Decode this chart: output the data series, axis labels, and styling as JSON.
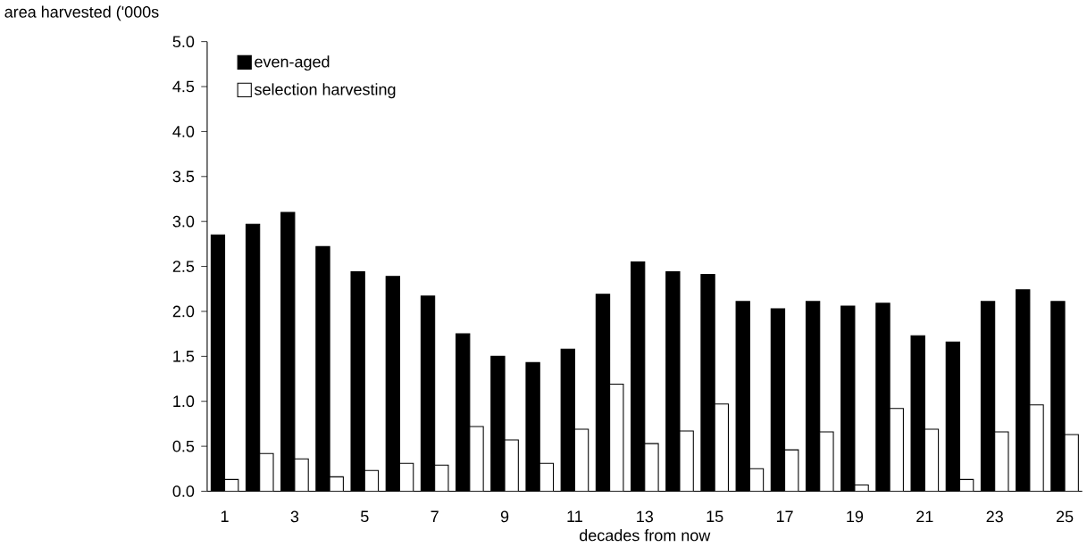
{
  "chart_data": {
    "type": "bar",
    "ylabel": "area harvested ('000s",
    "xlabel": "decades from now",
    "categories": [
      "1",
      null,
      "3",
      null,
      "5",
      null,
      "7",
      null,
      "9",
      null,
      "11",
      null,
      "13",
      null,
      "15",
      null,
      "17",
      null,
      "19",
      null,
      "21",
      null,
      "23",
      null,
      "25"
    ],
    "series": [
      {
        "name": "even-aged",
        "color": "#000000",
        "values": [
          2.85,
          2.97,
          3.1,
          2.72,
          2.44,
          2.39,
          2.17,
          1.75,
          1.5,
          1.43,
          1.58,
          2.19,
          2.55,
          2.44,
          2.41,
          2.11,
          2.03,
          2.11,
          2.06,
          2.09,
          1.73,
          1.66,
          2.11,
          2.24,
          2.11
        ]
      },
      {
        "name": "selection harvesting",
        "color": "#ffffff",
        "values": [
          0.13,
          0.42,
          0.36,
          0.16,
          0.23,
          0.31,
          0.29,
          0.72,
          0.57,
          0.31,
          0.69,
          1.19,
          0.53,
          0.67,
          0.97,
          0.25,
          0.46,
          0.66,
          0.07,
          0.92,
          0.69,
          0.13,
          0.66,
          0.96,
          0.63
        ]
      }
    ],
    "ylim": [
      0,
      5
    ],
    "yticks": [
      {
        "value": 0,
        "label": "0.0"
      },
      {
        "value": 0.5,
        "label": "0.5"
      },
      {
        "value": 1,
        "label": "1.0"
      },
      {
        "value": 1.5,
        "label": "1.5"
      },
      {
        "value": 2,
        "label": "2.0"
      },
      {
        "value": 2.5,
        "label": "2.5"
      },
      {
        "value": 3,
        "label": "3.0"
      },
      {
        "value": 3.5,
        "label": "3.5"
      },
      {
        "value": 4,
        "label": "4.0"
      },
      {
        "value": 4.5,
        "label": "4.5"
      },
      {
        "value": 5,
        "label": "5.0"
      }
    ],
    "grid": false,
    "legend": "top left"
  }
}
